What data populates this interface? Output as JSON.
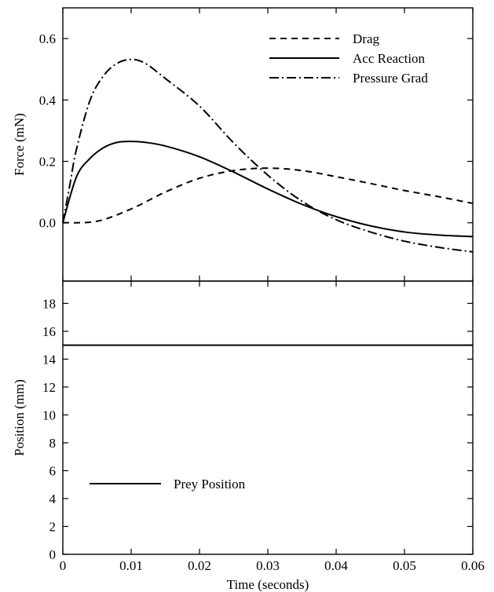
{
  "chart_data": [
    {
      "type": "line",
      "ylabel": "Force (mN)",
      "xlim": [
        0,
        0.06
      ],
      "ylim": [
        -0.19,
        0.7
      ],
      "x_ticks": [
        0,
        0.01,
        0.02,
        0.03,
        0.04,
        0.05,
        0.06
      ],
      "y_ticks": [
        0.0,
        0.2,
        0.4,
        0.6
      ],
      "y_tick_labels": [
        "0.0",
        "0.2",
        "0.4",
        "0.6"
      ],
      "legend": {
        "placement": "top-right"
      },
      "series": [
        {
          "name": "Drag",
          "style": "dashed",
          "x": [
            0,
            0.005,
            0.01,
            0.015,
            0.02,
            0.025,
            0.03,
            0.035,
            0.04,
            0.045,
            0.05,
            0.055,
            0.06
          ],
          "y": [
            0.0,
            0.005,
            0.045,
            0.1,
            0.145,
            0.17,
            0.178,
            0.17,
            0.15,
            0.128,
            0.105,
            0.085,
            0.063
          ]
        },
        {
          "name": "Acc Reaction",
          "style": "solid",
          "x": [
            0,
            0.002,
            0.004,
            0.006,
            0.008,
            0.01,
            0.012,
            0.015,
            0.02,
            0.025,
            0.03,
            0.035,
            0.04,
            0.045,
            0.05,
            0.055,
            0.06
          ],
          "y": [
            0.0,
            0.15,
            0.21,
            0.245,
            0.262,
            0.265,
            0.262,
            0.25,
            0.215,
            0.165,
            0.11,
            0.06,
            0.02,
            -0.01,
            -0.03,
            -0.04,
            -0.045
          ]
        },
        {
          "name": "Pressure Grad",
          "style": "dash-dot",
          "x": [
            0,
            0.001,
            0.002,
            0.004,
            0.006,
            0.008,
            0.01,
            0.012,
            0.015,
            0.02,
            0.025,
            0.03,
            0.035,
            0.04,
            0.045,
            0.05,
            0.055,
            0.06
          ],
          "y": [
            0.0,
            0.12,
            0.24,
            0.4,
            0.48,
            0.52,
            0.532,
            0.52,
            0.47,
            0.38,
            0.26,
            0.155,
            0.07,
            0.01,
            -0.03,
            -0.06,
            -0.08,
            -0.095
          ]
        }
      ]
    },
    {
      "type": "line",
      "xlabel": "Time (seconds)",
      "ylabel": "Position (mm)",
      "xlim": [
        0,
        0.06
      ],
      "ylim": [
        0,
        19.6
      ],
      "x_ticks": [
        0,
        0.01,
        0.02,
        0.03,
        0.04,
        0.05,
        0.06
      ],
      "x_tick_labels": [
        "0",
        "0.01",
        "0.02",
        "0.03",
        "0.04",
        "0.05",
        "0.06"
      ],
      "y_ticks": [
        0,
        2,
        4,
        6,
        8,
        10,
        12,
        14,
        16,
        18
      ],
      "y_tick_labels": [
        "0",
        "2",
        "4",
        "6",
        "8",
        "10",
        "12",
        "14",
        "16",
        "18"
      ],
      "legend": {
        "placement": "bottom-left"
      },
      "series": [
        {
          "name": "Prey Position",
          "style": "solid",
          "x": [
            0,
            0.06
          ],
          "y": [
            15,
            15
          ]
        }
      ]
    }
  ]
}
